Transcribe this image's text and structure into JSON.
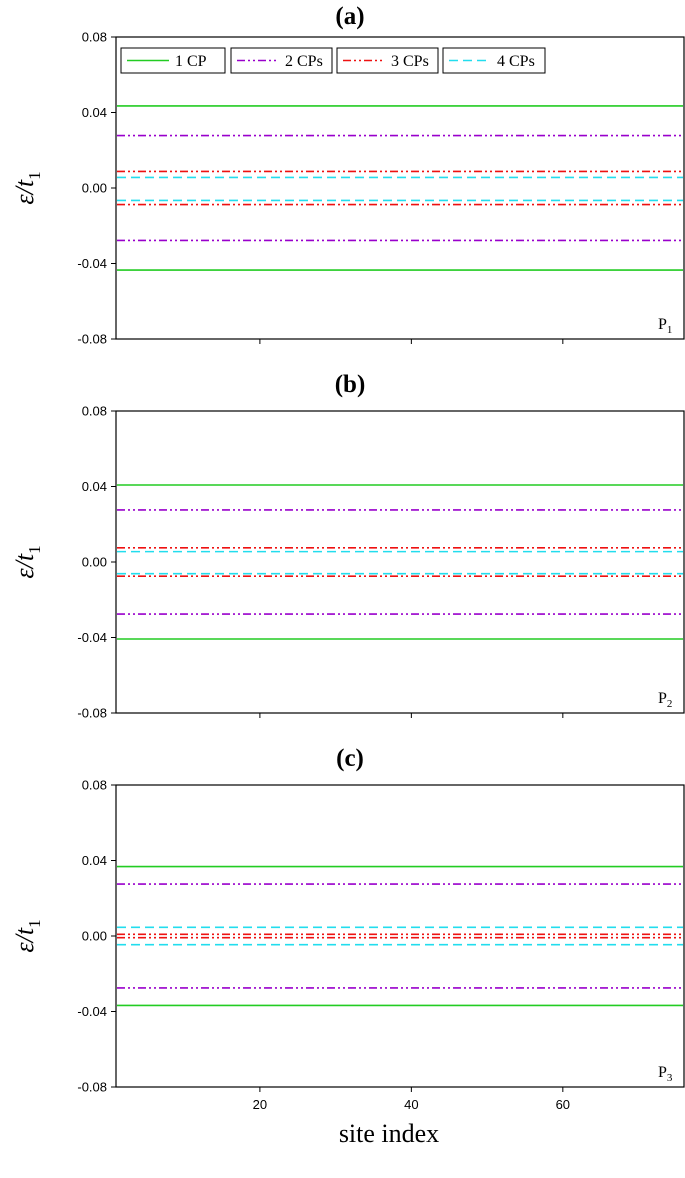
{
  "colors": {
    "1 CP": "#22cc22",
    "2 CPs": "#9900cc",
    "3 CPs": "#ee1111",
    "4 CPs": "#22ddee"
  },
  "xlabel": "site index",
  "chart_data": [
    {
      "type": "line",
      "title": "(a)",
      "corner_label": "P",
      "corner_sub": "1",
      "ylabel": "ε/t",
      "ylabel_sub": "1",
      "xlabel": "",
      "xlim": [
        1,
        76
      ],
      "ylim": [
        -0.08,
        0.08
      ],
      "yticks": [
        "0.08",
        "0.04",
        "0.00",
        "-0.04",
        "-0.08"
      ],
      "xticks": [
        20,
        40,
        60
      ],
      "xticklabels_shown": false,
      "legend": [
        "1 CP",
        "2 CPs",
        "3 CPs",
        "4 CPs"
      ],
      "legend_position": "top",
      "series": [
        {
          "name": "1 CP",
          "style": "solid",
          "levels": [
            0.0435,
            -0.0435
          ]
        },
        {
          "name": "2 CPs",
          "style": "dash-dot-dot",
          "levels": [
            0.0278,
            -0.0278
          ]
        },
        {
          "name": "3 CPs",
          "style": "dash-dot-dot",
          "levels": [
            0.0088,
            -0.0088
          ]
        },
        {
          "name": "4 CPs",
          "style": "dashed",
          "levels": [
            0.0056,
            -0.0066
          ]
        }
      ]
    },
    {
      "type": "line",
      "title": "(b)",
      "corner_label": "P",
      "corner_sub": "2",
      "ylabel": "ε/t",
      "ylabel_sub": "1",
      "xlabel": "",
      "xlim": [
        1,
        76
      ],
      "ylim": [
        -0.08,
        0.08
      ],
      "yticks": [
        "0.08",
        "0.04",
        "0.00",
        "-0.04",
        "-0.08"
      ],
      "xticks": [
        20,
        40,
        60
      ],
      "xticklabels_shown": false,
      "series": [
        {
          "name": "1 CP",
          "style": "solid",
          "levels": [
            0.0408,
            -0.0408
          ]
        },
        {
          "name": "2 CPs",
          "style": "dash-dot-dot",
          "levels": [
            0.0276,
            -0.0276
          ]
        },
        {
          "name": "3 CPs",
          "style": "dash-dot-dot",
          "levels": [
            0.0075,
            -0.0075
          ]
        },
        {
          "name": "4 CPs",
          "style": "dashed",
          "levels": [
            0.0055,
            -0.0062
          ]
        }
      ]
    },
    {
      "type": "line",
      "title": "(c)",
      "corner_label": "P",
      "corner_sub": "3",
      "ylabel": "ε/t",
      "ylabel_sub": "1",
      "xlabel": "site index",
      "xlim": [
        1,
        76
      ],
      "ylim": [
        -0.08,
        0.08
      ],
      "yticks": [
        "0.08",
        "0.04",
        "0.00",
        "-0.04",
        "-0.08"
      ],
      "xticks": [
        20,
        40,
        60
      ],
      "xticklabels_shown": true,
      "series": [
        {
          "name": "1 CP",
          "style": "solid",
          "levels": [
            0.0368,
            -0.0368
          ]
        },
        {
          "name": "2 CPs",
          "style": "dash-dot-dot",
          "levels": [
            0.0275,
            -0.0275
          ]
        },
        {
          "name": "3 CPs",
          "style": "dash-dot-dot",
          "levels": [
            0.0009,
            -0.0009
          ]
        },
        {
          "name": "4 CPs",
          "style": "dashed",
          "levels": [
            0.0046,
            -0.0046
          ]
        }
      ]
    }
  ]
}
